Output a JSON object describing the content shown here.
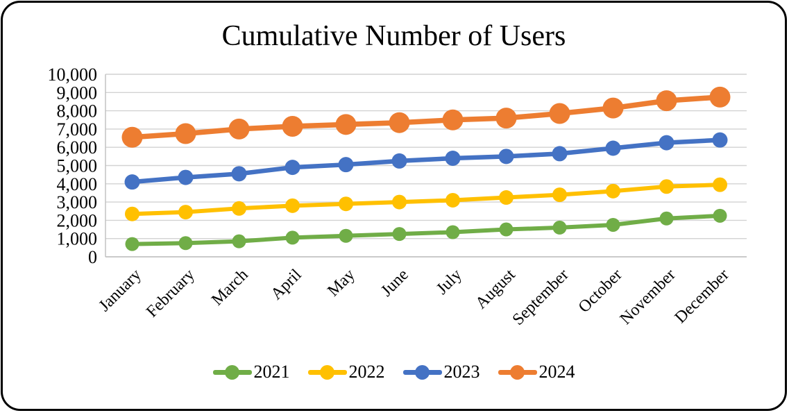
{
  "chart_data": {
    "type": "line",
    "title": "Cumulative Number of Users",
    "categories": [
      "January",
      "February",
      "March",
      "April",
      "May",
      "June",
      "July",
      "August",
      "September",
      "October",
      "November",
      "December"
    ],
    "series": [
      {
        "name": "2021",
        "color": "#70AD47",
        "line_width": 6,
        "marker_radius": 10,
        "values": [
          700,
          750,
          850,
          1050,
          1150,
          1250,
          1350,
          1500,
          1600,
          1750,
          2100,
          2250
        ]
      },
      {
        "name": "2022",
        "color": "#FFC000",
        "line_width": 6,
        "marker_radius": 10.5,
        "values": [
          2350,
          2450,
          2650,
          2800,
          2900,
          3000,
          3100,
          3250,
          3400,
          3600,
          3850,
          3950
        ]
      },
      {
        "name": "2023",
        "color": "#4472C4",
        "line_width": 6.5,
        "marker_radius": 11,
        "values": [
          4100,
          4350,
          4550,
          4900,
          5050,
          5250,
          5400,
          5500,
          5650,
          5950,
          6250,
          6400
        ]
      },
      {
        "name": "2024",
        "color": "#ED7D31",
        "line_width": 7.5,
        "marker_radius": 15,
        "values": [
          6550,
          6750,
          7000,
          7150,
          7250,
          7350,
          7500,
          7600,
          7850,
          8150,
          8550,
          8750
        ]
      }
    ],
    "ylim": [
      0,
      10000
    ],
    "ytick_step": 1000,
    "ytick_labels": [
      "0",
      "1,000",
      "2,000",
      "3,000",
      "4,000",
      "5,000",
      "6,000",
      "7,000",
      "8,000",
      "9,000",
      "10,000"
    ],
    "grid": "horizontal",
    "legend_position": "bottom",
    "gridline_color": "#D2D2D2",
    "axis_color": "#BFBFBF",
    "text_color": "#000000",
    "xlabel": "",
    "ylabel": ""
  }
}
